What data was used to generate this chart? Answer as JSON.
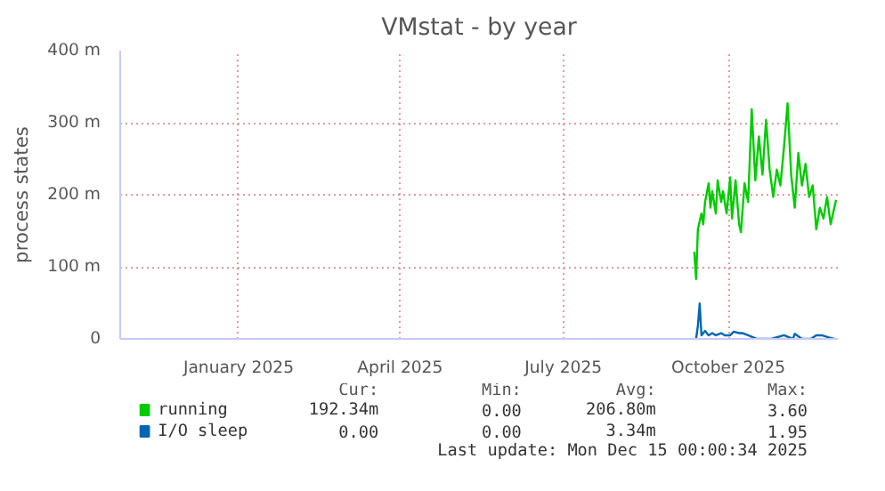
{
  "chart_data": {
    "type": "line",
    "title": "VMstat - by year",
    "ylabel": "process states",
    "xlim": [
      "2024-11-10",
      "2025-12-15"
    ],
    "xticks": [
      {
        "value": "2025-01-15",
        "label": "January 2025"
      },
      {
        "value": "2025-04-15",
        "label": "April 2025"
      },
      {
        "value": "2025-07-15",
        "label": "July 2025"
      },
      {
        "value": "2025-10-15",
        "label": "October 2025"
      }
    ],
    "ylim": [
      0,
      400
    ],
    "yticks": [
      0,
      {
        "value": 100,
        "label": "100 m"
      },
      {
        "value": 200,
        "label": "200 m"
      },
      {
        "value": 300,
        "label": "300 m"
      },
      {
        "value": 400,
        "label": "400 m"
      }
    ],
    "grid": true,
    "legend": "bottom",
    "marker": "none",
    "line_style": "solid",
    "series": [
      {
        "name": "running",
        "color": "#00cc00",
        "x": [
          "2025-09-26",
          "2025-09-27",
          "2025-09-28",
          "2025-09-30",
          "2025-10-01",
          "2025-10-02",
          "2025-10-04",
          "2025-10-05",
          "2025-10-06",
          "2025-10-08",
          "2025-10-09",
          "2025-10-11",
          "2025-10-12",
          "2025-10-14",
          "2025-10-16",
          "2025-10-17",
          "2025-10-19",
          "2025-10-21",
          "2025-10-22",
          "2025-10-24",
          "2025-10-26",
          "2025-10-28",
          "2025-10-30",
          "2025-11-01",
          "2025-11-03",
          "2025-11-05",
          "2025-11-07",
          "2025-11-09",
          "2025-11-11",
          "2025-11-13",
          "2025-11-15",
          "2025-11-17",
          "2025-11-19",
          "2025-11-21",
          "2025-11-23",
          "2025-11-25",
          "2025-11-27",
          "2025-11-29",
          "2025-12-01",
          "2025-12-03",
          "2025-12-05",
          "2025-12-07",
          "2025-12-09",
          "2025-12-11",
          "2025-12-14"
        ],
        "values": [
          121,
          83,
          152,
          174,
          159,
          190,
          216,
          182,
          205,
          174,
          220,
          190,
          205,
          174,
          224,
          167,
          220,
          159,
          148,
          216,
          190,
          319,
          220,
          281,
          228,
          304,
          235,
          197,
          235,
          213,
          266,
          327,
          228,
          182,
          258,
          213,
          243,
          197,
          213,
          152,
          182,
          167,
          197,
          159,
          193
        ]
      },
      {
        "name": "I/O sleep",
        "color": "#0066b3",
        "x": [
          "2025-09-27",
          "2025-09-28",
          "2025-09-29",
          "2025-09-30",
          "2025-10-02",
          "2025-10-04",
          "2025-10-06",
          "2025-10-08",
          "2025-10-11",
          "2025-10-13",
          "2025-10-16",
          "2025-10-18",
          "2025-10-21",
          "2025-10-23",
          "2025-10-26",
          "2025-10-28",
          "2025-10-31",
          "2025-11-08",
          "2025-11-15",
          "2025-11-20",
          "2025-11-21",
          "2025-11-25",
          "2025-11-30",
          "2025-12-03",
          "2025-12-06",
          "2025-12-10",
          "2025-12-13"
        ],
        "values": [
          0,
          18,
          49,
          5,
          11,
          5,
          8,
          5,
          8,
          5,
          5,
          10,
          8,
          8,
          5,
          3,
          0,
          0,
          5,
          0,
          7,
          0,
          0,
          5,
          5,
          2,
          0
        ]
      }
    ],
    "annotations": [
      "Cur:",
      "Min:",
      "Avg:",
      "Max:",
      "192.34m",
      "0.00",
      "206.80m",
      "3.60",
      "0.00",
      "0.00",
      "3.34m",
      "1.95",
      "Last update: Mon Dec 15 00:00:34 2025"
    ]
  }
}
